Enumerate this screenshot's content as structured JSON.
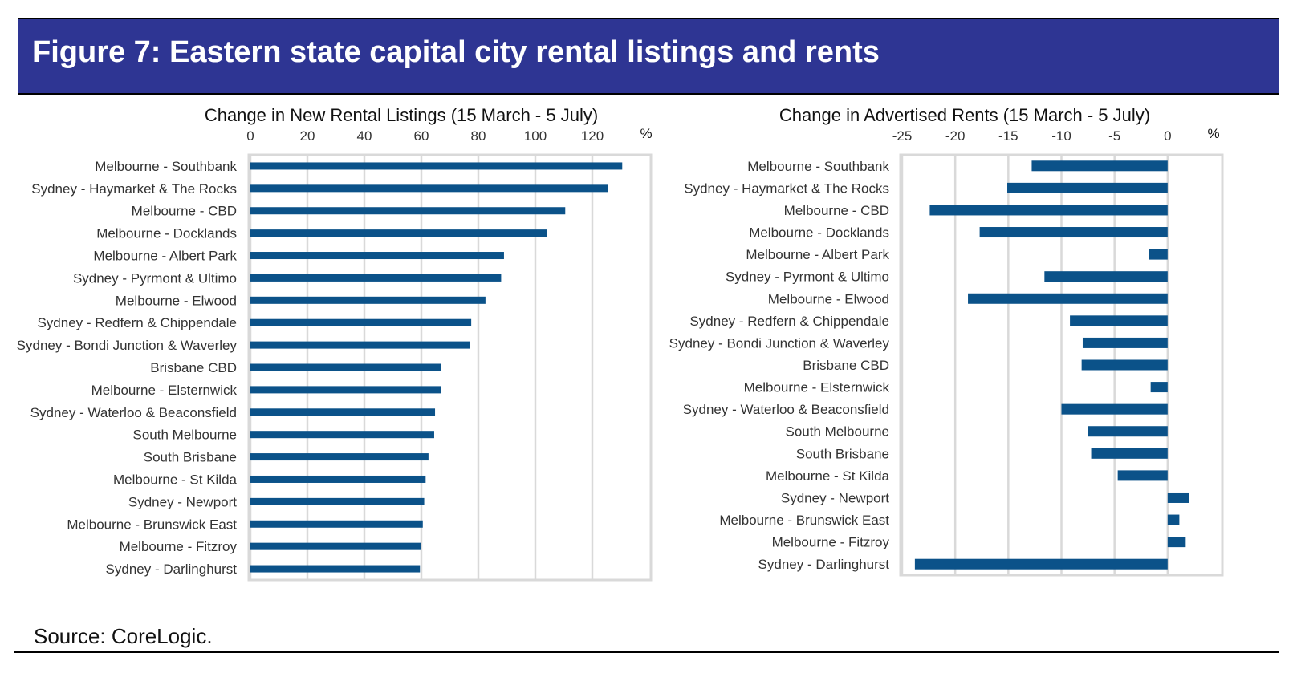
{
  "header": {
    "title": "Figure 7: Eastern state capital city rental listings and rents"
  },
  "footer": {
    "source": "Source: CoreLogic."
  },
  "colors": {
    "banner": "#2e3593",
    "bar": "#0b5289",
    "grid": "#d9d9d9"
  },
  "chart_data": [
    {
      "type": "bar",
      "orientation": "horizontal",
      "title": "Change in New Rental Listings (15 March - 5 July)",
      "xlabel": "%",
      "xlim": [
        0,
        140
      ],
      "ticks": [
        0,
        20,
        40,
        60,
        80,
        100,
        120
      ],
      "categories": [
        "Melbourne - Southbank",
        "Sydney - Haymarket & The Rocks",
        "Melbourne - CBD",
        "Melbourne - Docklands",
        "Melbourne - Albert Park",
        "Sydney - Pyrmont & Ultimo",
        "Melbourne - Elwood",
        "Sydney - Redfern & Chippendale",
        "Sydney - Bondi Junction & Waverley",
        "Brisbane CBD",
        "Melbourne - Elsternwick",
        "Sydney - Waterloo & Beaconsfield",
        "South Melbourne",
        "South Brisbane",
        "Melbourne - St Kilda",
        "Sydney - Newport",
        "Melbourne - Brunswick East",
        "Melbourne - Fitzroy",
        "Sydney - Darlinghurst"
      ],
      "values": [
        130.5,
        125.5,
        110.5,
        104,
        89,
        88,
        82.5,
        77.5,
        77,
        67,
        66.8,
        64.8,
        64.5,
        62.5,
        61.5,
        61,
        60.5,
        60,
        59.5
      ]
    },
    {
      "type": "bar",
      "orientation": "horizontal",
      "title": "Change in Advertised Rents (15 March - 5 July)",
      "xlabel": "%",
      "xlim": [
        -25,
        5
      ],
      "ticks": [
        -25,
        -20,
        -15,
        -10,
        -5,
        0
      ],
      "categories": [
        "Melbourne - Southbank",
        "Sydney - Haymarket & The Rocks",
        "Melbourne - CBD",
        "Melbourne - Docklands",
        "Melbourne - Albert Park",
        "Sydney - Pyrmont & Ultimo",
        "Melbourne - Elwood",
        "Sydney - Redfern & Chippendale",
        "Sydney - Bondi Junction & Waverley",
        "Brisbane CBD",
        "Melbourne - Elsternwick",
        "Sydney - Waterloo & Beaconsfield",
        "South Melbourne",
        "South Brisbane",
        "Melbourne - St Kilda",
        "Sydney - Newport",
        "Melbourne - Brunswick East",
        "Melbourne - Fitzroy",
        "Sydney - Darlinghurst"
      ],
      "values": [
        -12.8,
        -15.1,
        -22.4,
        -17.7,
        -1.8,
        -11.6,
        -18.8,
        -9.2,
        -8.0,
        -8.1,
        -1.6,
        -10.0,
        -7.5,
        -7.2,
        -4.7,
        2.0,
        1.1,
        1.7,
        -23.8
      ]
    }
  ]
}
